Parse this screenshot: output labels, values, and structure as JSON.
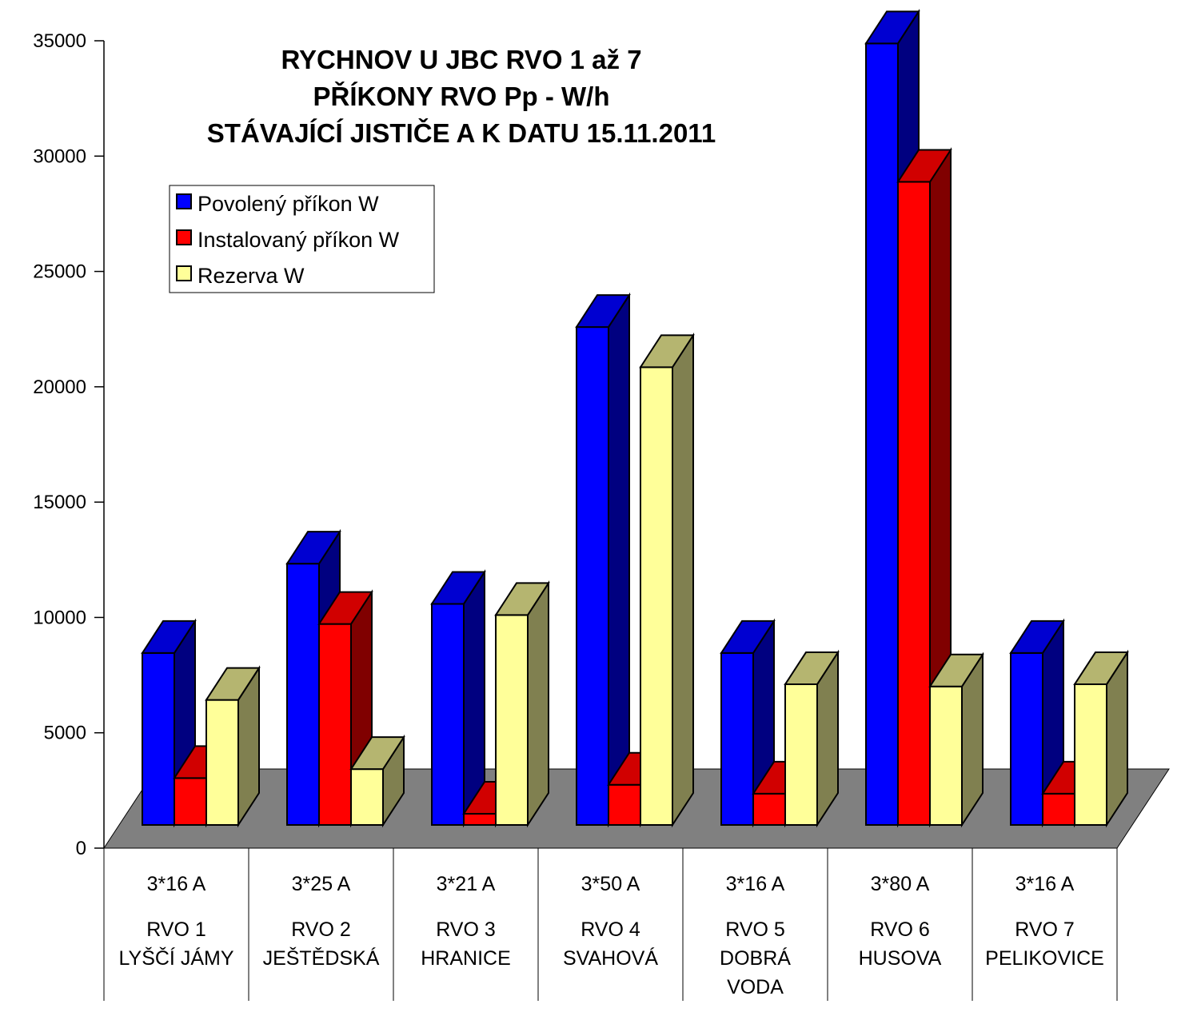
{
  "chart_data": {
    "type": "bar",
    "title": [
      "RYCHNOV U JBC RVO 1 až 7",
      "PŘÍKONY RVO Pp - W/h",
      "STÁVAJÍCÍ JISTIČE  A  K DATU 15.11.2011"
    ],
    "xlabel": "",
    "ylabel": "",
    "ylim": [
      0,
      35000
    ],
    "yticks": [
      0,
      5000,
      10000,
      15000,
      20000,
      25000,
      30000,
      35000
    ],
    "grid": false,
    "legend_position": "top-left",
    "categories": [
      {
        "breaker": "3*16 A",
        "name": [
          "RVO 1",
          "LYŠČÍ JÁMY"
        ]
      },
      {
        "breaker": "3*25 A",
        "name": [
          "RVO 2",
          "JEŠTĚDSKÁ"
        ]
      },
      {
        "breaker": "3*21 A",
        "name": [
          "RVO 3",
          "HRANICE"
        ]
      },
      {
        "breaker": "3*50 A",
        "name": [
          "RVO 4",
          "SVAHOVÁ"
        ]
      },
      {
        "breaker": "3*16 A",
        "name": [
          "RVO 5",
          "DOBRÁ",
          "VODA"
        ]
      },
      {
        "breaker": "3*80 A",
        "name": [
          "RVO 6",
          "HUSOVA"
        ]
      },
      {
        "breaker": "3*16 A",
        "name": [
          "RVO 7",
          "PELIKOVICE"
        ]
      }
    ],
    "series": [
      {
        "name": "Povolený příkon W",
        "color": "#0000ff",
        "side_color": "#000080",
        "values": [
          7700,
          11700,
          9900,
          22300,
          7700,
          35000,
          7700
        ]
      },
      {
        "name": "Instalovaný příkon W",
        "color": "#ff0000",
        "side_color": "#800000",
        "values": [
          2100,
          9000,
          500,
          1800,
          1400,
          28800,
          1400
        ]
      },
      {
        "name": "Rezerva W",
        "color": "#ffff99",
        "side_color": "#808050",
        "values": [
          5600,
          2500,
          9400,
          20500,
          6300,
          6200,
          6300
        ]
      }
    ]
  }
}
